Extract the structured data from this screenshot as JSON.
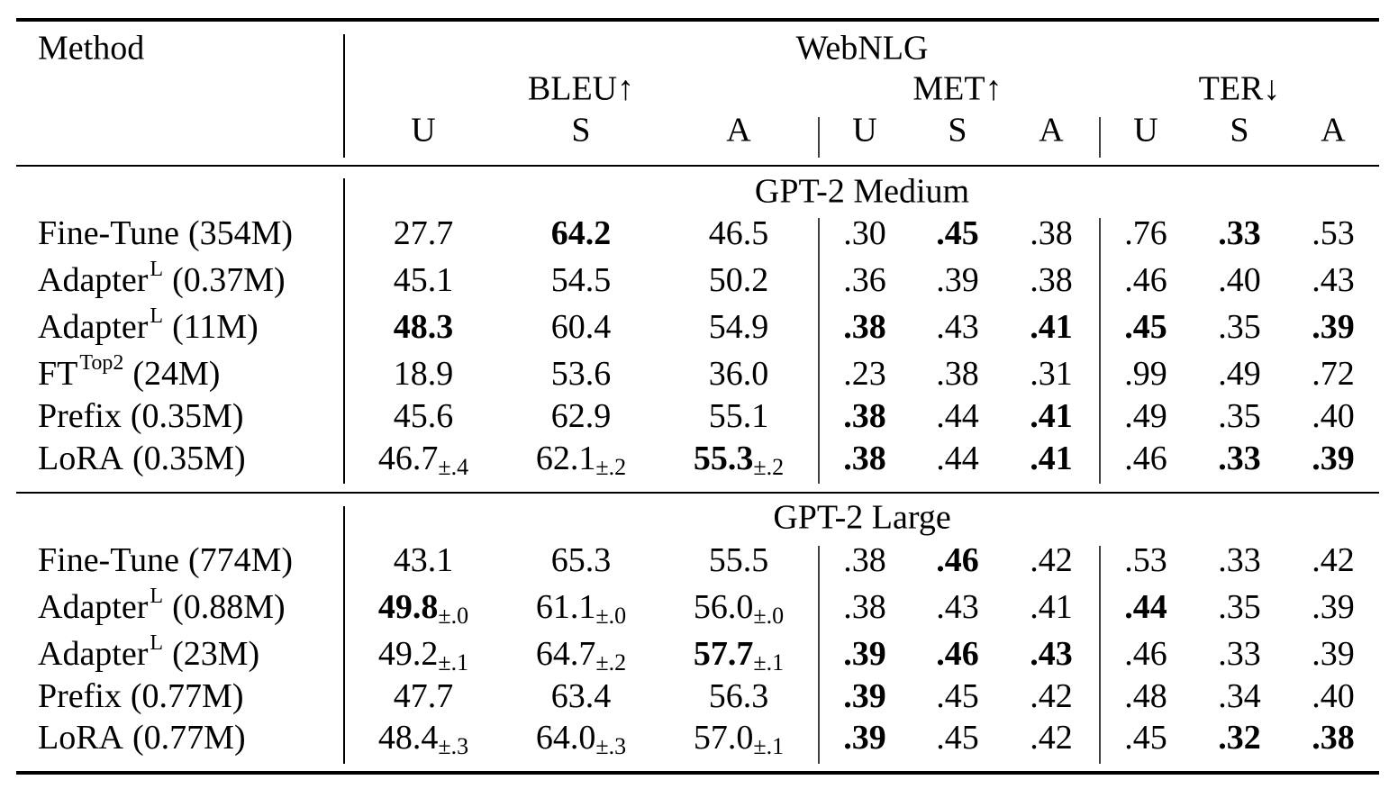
{
  "header": {
    "method": "Method",
    "dataset": "WebNLG",
    "metrics": [
      "BLEU↑",
      "MET↑",
      "TER↓"
    ],
    "subcolumns": [
      "U",
      "S",
      "A",
      "U",
      "S",
      "A",
      "U",
      "S",
      "A"
    ]
  },
  "sections": [
    {
      "title": "GPT-2 Medium",
      "rows": [
        {
          "method": {
            "name": "Fine-Tune",
            "size": "(354M)"
          },
          "cells": [
            {
              "text": "27.7"
            },
            {
              "text": "64.2",
              "bold": true
            },
            {
              "text": "46.5"
            },
            {
              "text": ".30"
            },
            {
              "text": ".45",
              "bold": true
            },
            {
              "text": ".38"
            },
            {
              "text": ".76"
            },
            {
              "text": ".33",
              "bold": true
            },
            {
              "text": ".53"
            }
          ]
        },
        {
          "method": {
            "name": "Adapter",
            "sup": "L",
            "size": "(0.37M)"
          },
          "cells": [
            {
              "text": "45.1"
            },
            {
              "text": "54.5"
            },
            {
              "text": "50.2"
            },
            {
              "text": ".36"
            },
            {
              "text": ".39"
            },
            {
              "text": ".38"
            },
            {
              "text": ".46"
            },
            {
              "text": ".40"
            },
            {
              "text": ".43"
            }
          ]
        },
        {
          "method": {
            "name": "Adapter",
            "sup": "L",
            "size": "(11M)"
          },
          "cells": [
            {
              "text": "48.3",
              "bold": true
            },
            {
              "text": "60.4"
            },
            {
              "text": "54.9"
            },
            {
              "text": ".38",
              "bold": true
            },
            {
              "text": ".43"
            },
            {
              "text": ".41",
              "bold": true
            },
            {
              "text": ".45",
              "bold": true
            },
            {
              "text": ".35"
            },
            {
              "text": ".39",
              "bold": true
            }
          ]
        },
        {
          "method": {
            "name": "FT",
            "sup": "Top2",
            "size": "(24M)"
          },
          "cells": [
            {
              "text": "18.9"
            },
            {
              "text": "53.6"
            },
            {
              "text": "36.0"
            },
            {
              "text": ".23"
            },
            {
              "text": ".38"
            },
            {
              "text": ".31"
            },
            {
              "text": ".99"
            },
            {
              "text": ".49"
            },
            {
              "text": ".72"
            }
          ]
        },
        {
          "method": {
            "name": "Prefix",
            "size": "(0.35M)"
          },
          "cells": [
            {
              "text": "45.6"
            },
            {
              "text": "62.9"
            },
            {
              "text": "55.1"
            },
            {
              "text": ".38",
              "bold": true
            },
            {
              "text": ".44"
            },
            {
              "text": ".41",
              "bold": true
            },
            {
              "text": ".49"
            },
            {
              "text": ".35"
            },
            {
              "text": ".40"
            }
          ]
        },
        {
          "method": {
            "name": "LoRA",
            "size": "(0.35M)"
          },
          "cells": [
            {
              "text": "46.7",
              "sub": "±.4"
            },
            {
              "text": "62.1",
              "sub": "±.2"
            },
            {
              "text": "55.3",
              "bold": true,
              "sub": "±.2"
            },
            {
              "text": ".38",
              "bold": true
            },
            {
              "text": ".44"
            },
            {
              "text": ".41",
              "bold": true
            },
            {
              "text": ".46"
            },
            {
              "text": ".33",
              "bold": true
            },
            {
              "text": ".39",
              "bold": true
            }
          ]
        }
      ]
    },
    {
      "title": "GPT-2 Large",
      "rows": [
        {
          "method": {
            "name": "Fine-Tune",
            "size": "(774M)"
          },
          "cells": [
            {
              "text": "43.1"
            },
            {
              "text": "65.3"
            },
            {
              "text": "55.5"
            },
            {
              "text": ".38"
            },
            {
              "text": ".46",
              "bold": true
            },
            {
              "text": ".42"
            },
            {
              "text": ".53"
            },
            {
              "text": ".33"
            },
            {
              "text": ".42"
            }
          ]
        },
        {
          "method": {
            "name": "Adapter",
            "sup": "L",
            "size": "(0.88M)"
          },
          "cells": [
            {
              "text": "49.8",
              "bold": true,
              "sub": "±.0"
            },
            {
              "text": "61.1",
              "sub": "±.0"
            },
            {
              "text": "56.0",
              "sub": "±.0"
            },
            {
              "text": ".38"
            },
            {
              "text": ".43"
            },
            {
              "text": ".41"
            },
            {
              "text": ".44",
              "bold": true
            },
            {
              "text": ".35"
            },
            {
              "text": ".39"
            }
          ]
        },
        {
          "method": {
            "name": "Adapter",
            "sup": "L",
            "size": "(23M)"
          },
          "cells": [
            {
              "text": "49.2",
              "sub": "±.1"
            },
            {
              "text": "64.7",
              "sub": "±.2"
            },
            {
              "text": "57.7",
              "bold": true,
              "sub": "±.1"
            },
            {
              "text": ".39",
              "bold": true
            },
            {
              "text": ".46",
              "bold": true
            },
            {
              "text": ".43",
              "bold": true
            },
            {
              "text": ".46"
            },
            {
              "text": ".33"
            },
            {
              "text": ".39"
            }
          ]
        },
        {
          "method": {
            "name": "Prefix",
            "size": "(0.77M)"
          },
          "cells": [
            {
              "text": "47.7"
            },
            {
              "text": "63.4"
            },
            {
              "text": "56.3"
            },
            {
              "text": ".39",
              "bold": true
            },
            {
              "text": ".45"
            },
            {
              "text": ".42"
            },
            {
              "text": ".48"
            },
            {
              "text": ".34"
            },
            {
              "text": ".40"
            }
          ]
        },
        {
          "method": {
            "name": "LoRA",
            "size": "(0.77M)"
          },
          "cells": [
            {
              "text": "48.4",
              "sub": "±.3"
            },
            {
              "text": "64.0",
              "sub": "±.3"
            },
            {
              "text": "57.0",
              "sub": "±.1"
            },
            {
              "text": ".39",
              "bold": true
            },
            {
              "text": ".45"
            },
            {
              "text": ".42"
            },
            {
              "text": ".45"
            },
            {
              "text": ".32",
              "bold": true
            },
            {
              "text": ".38",
              "bold": true
            }
          ]
        }
      ]
    }
  ]
}
